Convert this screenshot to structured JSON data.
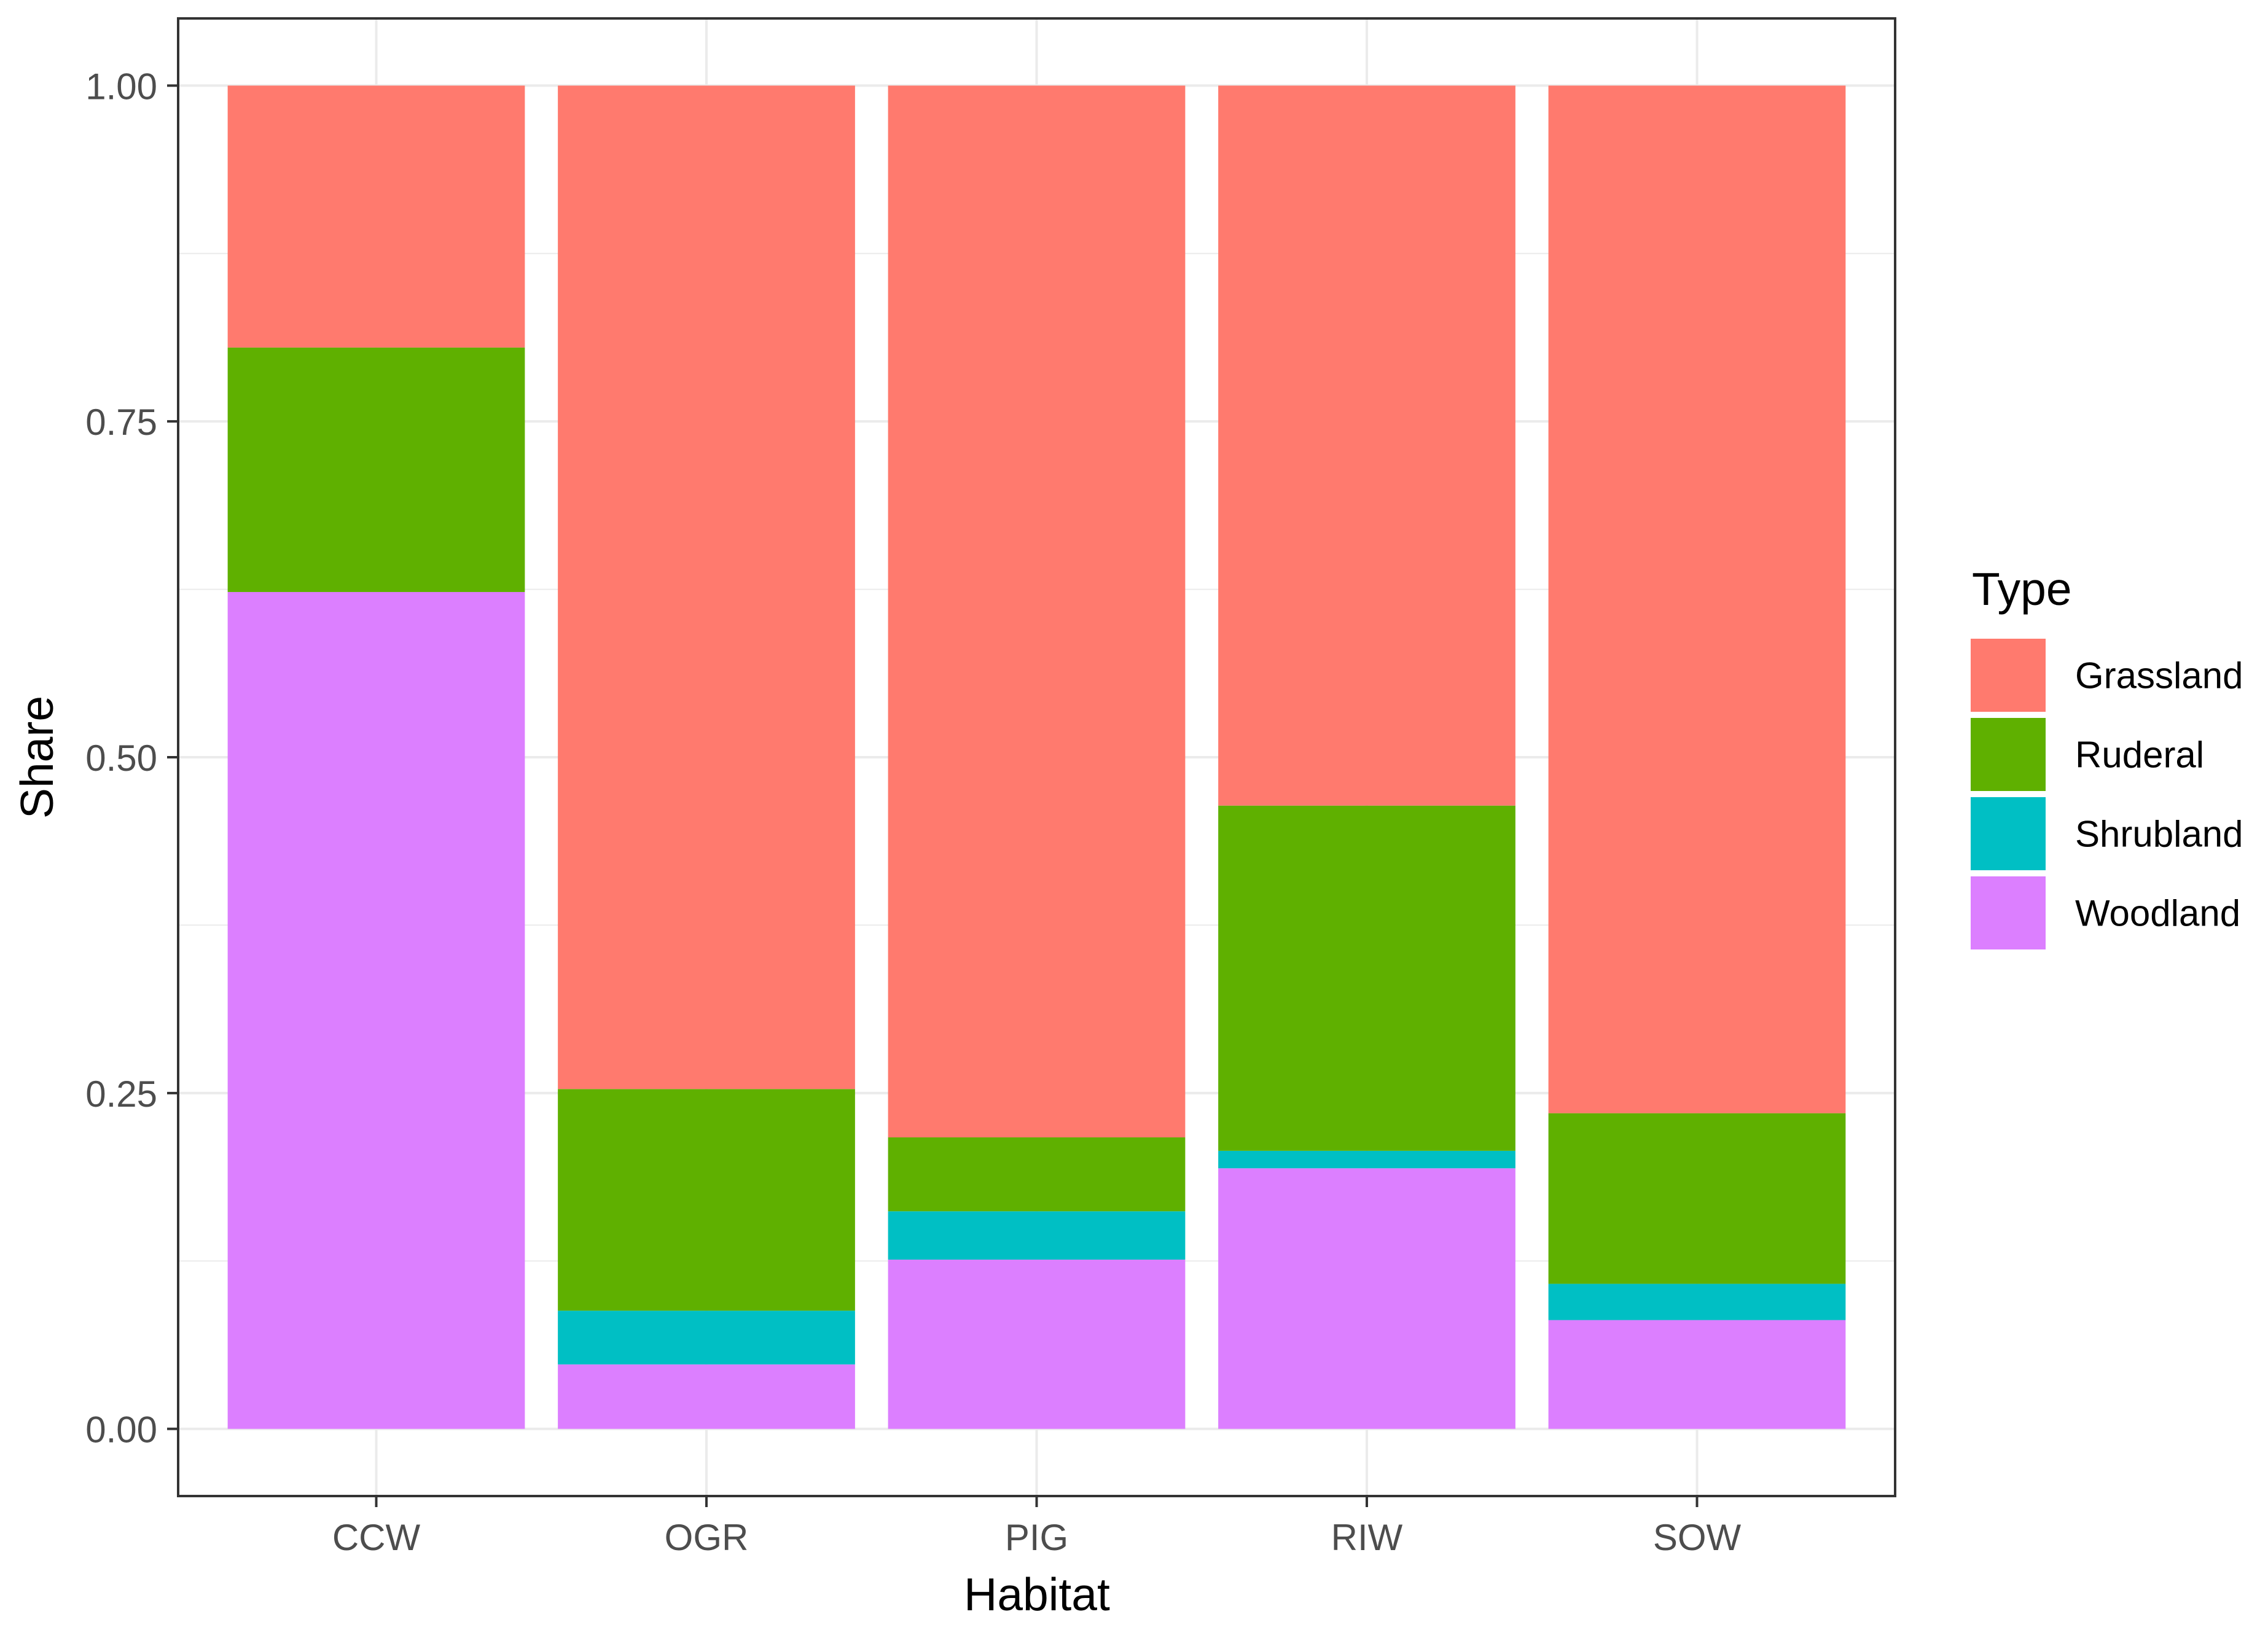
{
  "chart_data": {
    "type": "bar",
    "stacked": true,
    "categories": [
      "CCW",
      "OGR",
      "PIG",
      "RIW",
      "SOW"
    ],
    "series": [
      {
        "name": "Woodland",
        "color": "#DC7FFF",
        "values": [
          0.623,
          0.048,
          0.126,
          0.194,
          0.081
        ]
      },
      {
        "name": "Shrubland",
        "color": "#00BFC4",
        "values": [
          0.0,
          0.04,
          0.036,
          0.013,
          0.027
        ]
      },
      {
        "name": "Ruderal",
        "color": "#5FB000",
        "values": [
          0.182,
          0.165,
          0.055,
          0.257,
          0.127
        ]
      },
      {
        "name": "Grassland",
        "color": "#FF7A6E",
        "values": [
          0.195,
          0.747,
          0.783,
          0.536,
          0.765
        ]
      }
    ],
    "xlabel": "Habitat",
    "ylabel": "Share",
    "ylim": [
      -0.05,
      1.05
    ],
    "yticks": [
      "0.00",
      "0.25",
      "0.50",
      "0.75",
      "1.00"
    ],
    "grid": true,
    "legend": {
      "title": "Type",
      "placement": "right",
      "entries": [
        "Grassland",
        "Ruderal",
        "Shrubland",
        "Woodland"
      ]
    },
    "theme": {
      "background": "#FFFFFF",
      "grid_color": "#EBEBEB",
      "axis_color": "#333333",
      "text_color": "#4D4D4D"
    }
  }
}
